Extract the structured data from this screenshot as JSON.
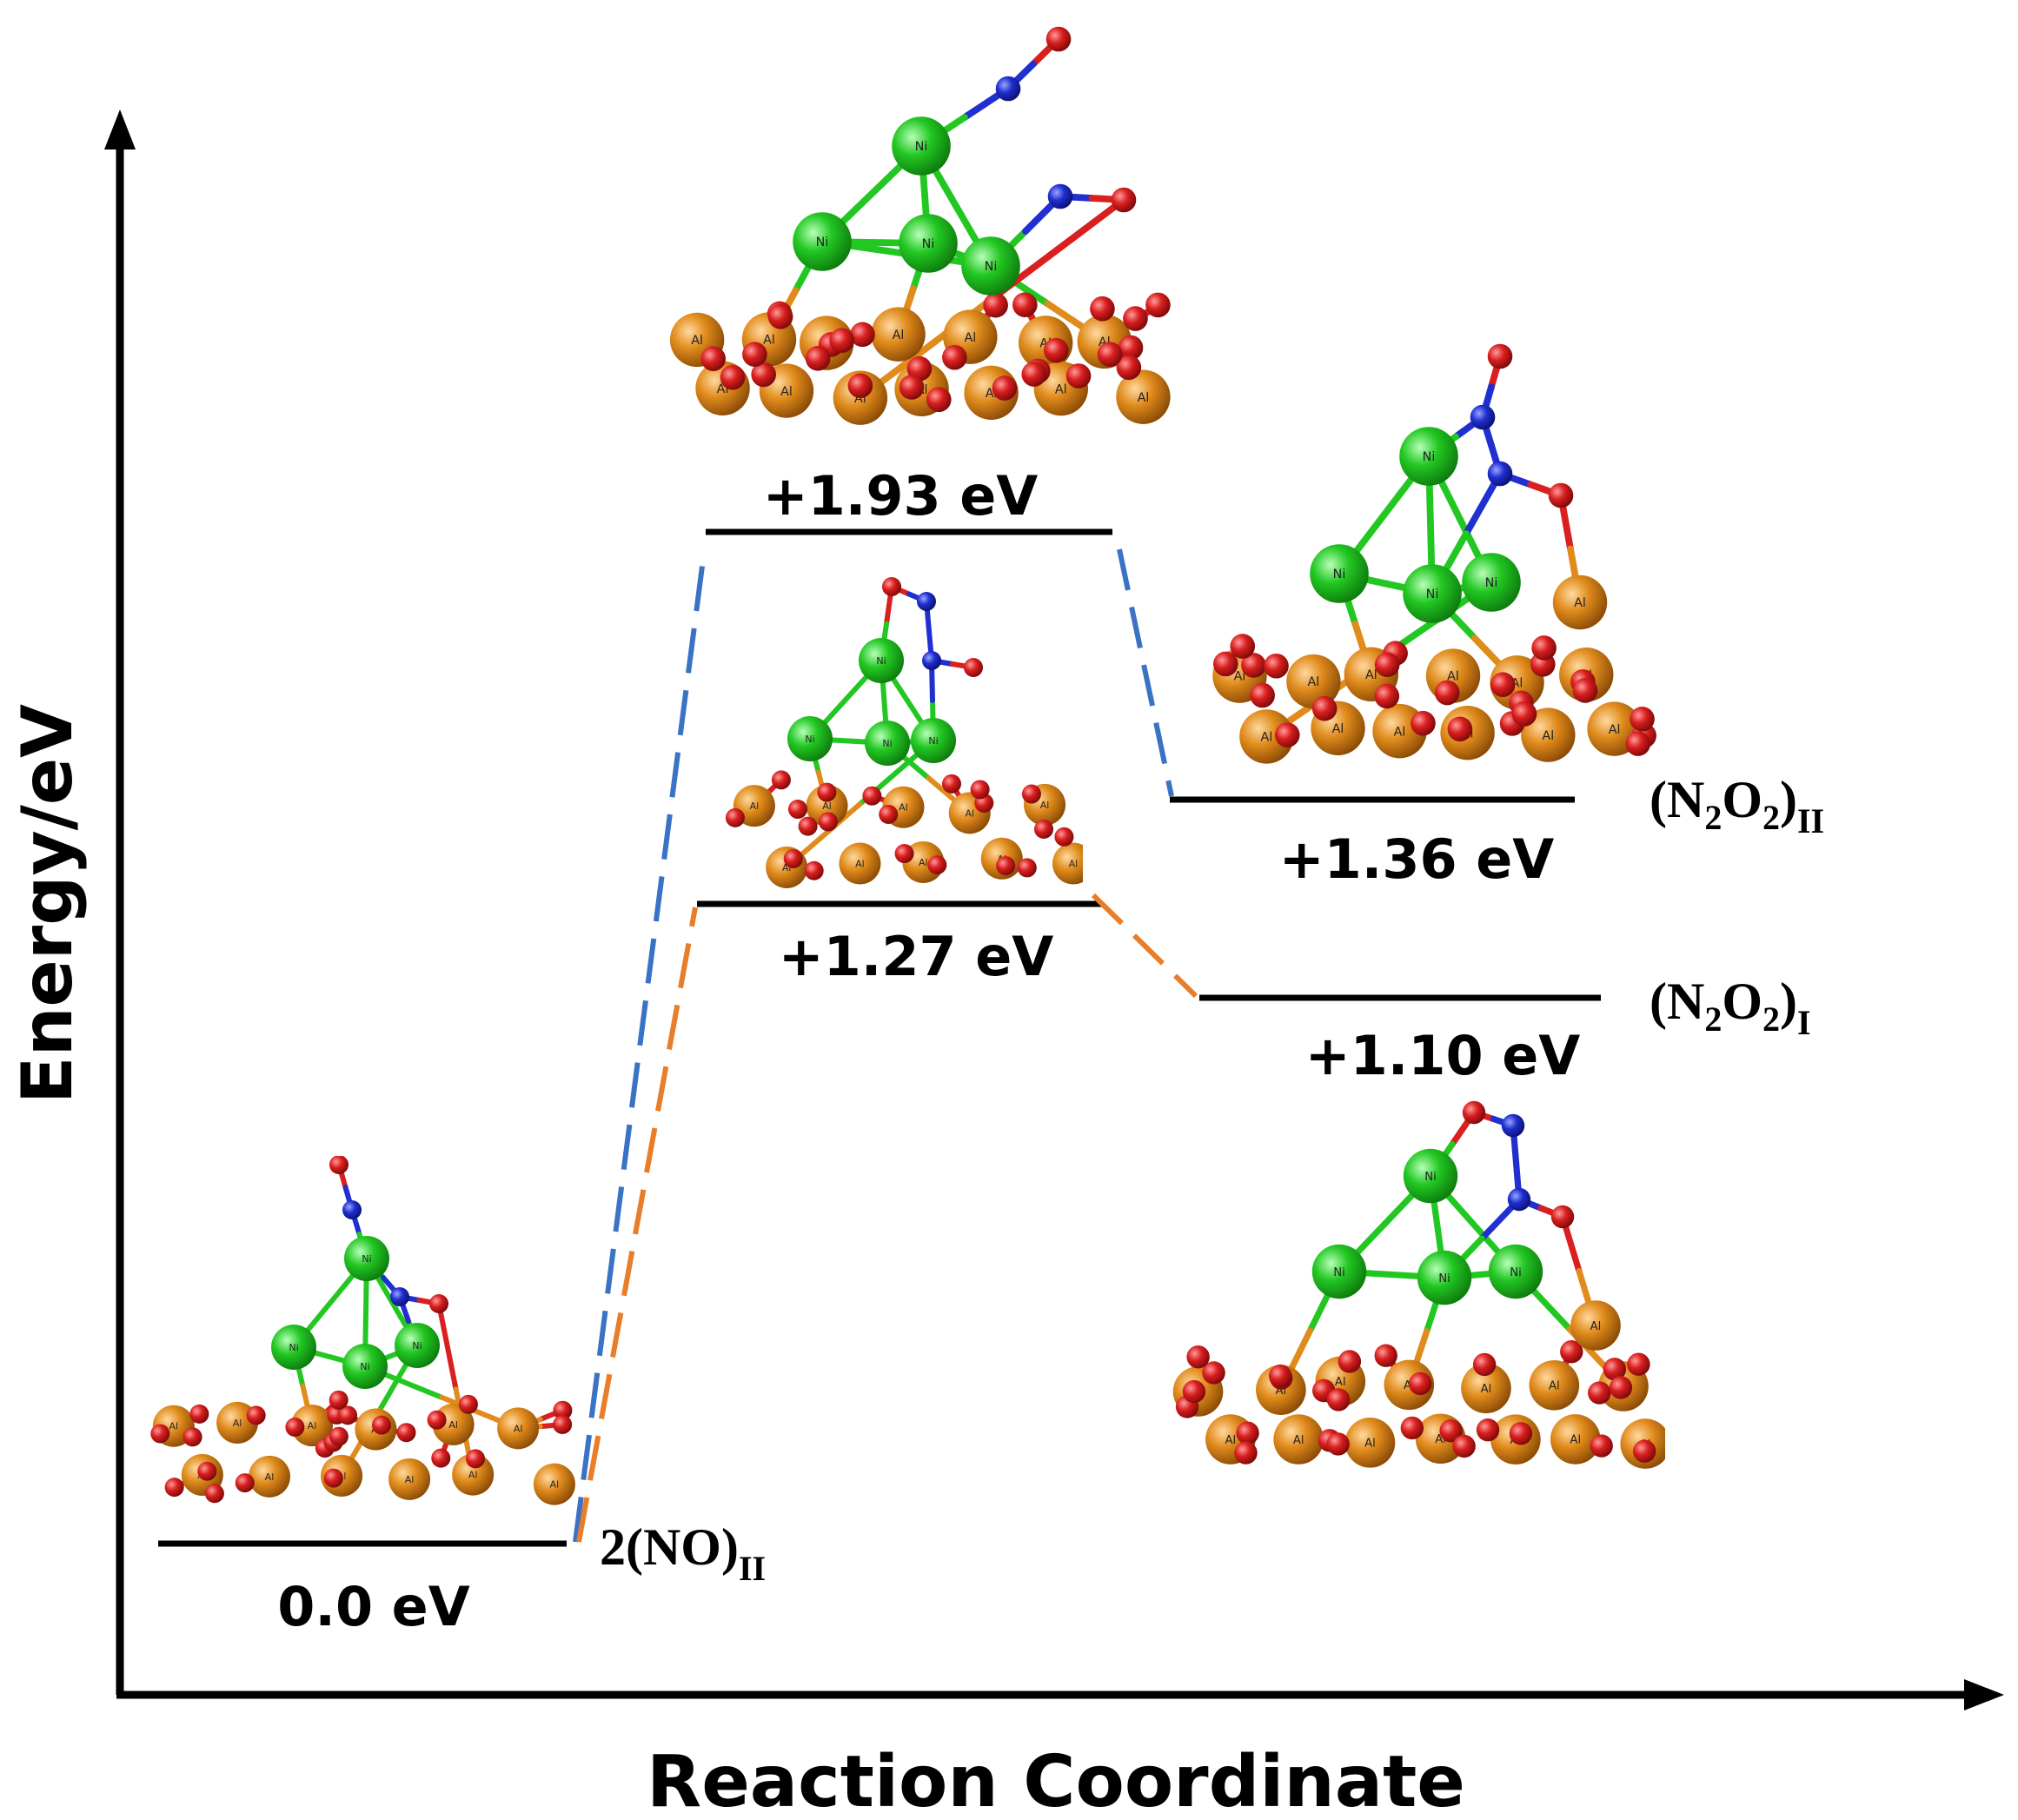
{
  "axes": {
    "y_label": "Energy/eV",
    "x_label": "Reaction Coordinate"
  },
  "levels": [
    {
      "id": "initial",
      "energy_label": "0.0 eV",
      "energy": 0.0
    },
    {
      "id": "ts_upper",
      "energy_label": "+1.93 eV",
      "energy": 1.93
    },
    {
      "id": "ts_lower",
      "energy_label": "+1.27 eV",
      "energy": 1.27
    },
    {
      "id": "product_upper",
      "energy_label": "+1.36 eV",
      "energy": 1.36
    },
    {
      "id": "product_lower",
      "energy_label": "+1.10 eV",
      "energy": 1.1
    }
  ],
  "species": {
    "reactant": {
      "main": "2(NO)",
      "sub": "II"
    },
    "product_II": {
      "open": "(N",
      "n_sub": "2",
      "o": "O",
      "o_sub": "2",
      "close": ")",
      "sub": "II"
    },
    "product_I": {
      "open": "(N",
      "n_sub": "2",
      "o": "O",
      "o_sub": "2",
      "close": ")",
      "sub": "I"
    }
  },
  "atom_labels": {
    "ni": "Ni",
    "al": "Al"
  },
  "colors": {
    "pathway_II": "#3b73c4",
    "pathway_I": "#e87d2a",
    "ni_atom": "#22c722",
    "al_atom": "#e08b1c",
    "o_atom": "#d91f1f",
    "n_atom": "#1f2fd0",
    "axis": "#000000"
  }
}
